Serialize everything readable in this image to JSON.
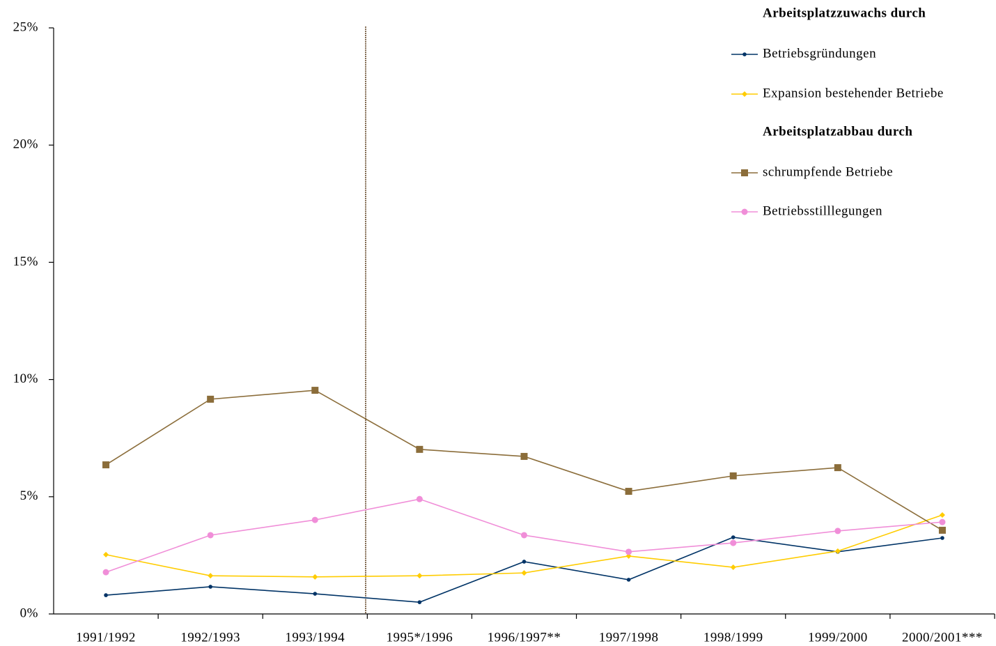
{
  "chart_data": {
    "type": "line",
    "categories": [
      "1991/1992",
      "1992/1993",
      "1993/1994",
      "1995*/1996",
      "1996/1997**",
      "1997/1998",
      "1998/1999",
      "1999/2000",
      "2000/2001***"
    ],
    "legend_headings": [
      "Arbeitsplatzzuwachs durch",
      "Arbeitsplatzabbau durch"
    ],
    "series": [
      {
        "name": "Betriebsgründungen",
        "color": "#003366",
        "marker": "circle-small",
        "values": [
          0.8,
          1.16,
          0.86,
          0.5,
          2.23,
          1.46,
          3.27,
          2.65,
          3.24
        ]
      },
      {
        "name": "Expansion bestehender Betriebe",
        "color": "#ffcc00",
        "marker": "diamond",
        "values": [
          2.53,
          1.63,
          1.58,
          1.63,
          1.75,
          2.47,
          1.99,
          2.68,
          4.22
        ]
      },
      {
        "name": "schrumpfende Betriebe",
        "color": "#8b6d3a",
        "marker": "square",
        "values": [
          6.36,
          9.16,
          9.54,
          7.02,
          6.72,
          5.23,
          5.89,
          6.24,
          3.57
        ]
      },
      {
        "name": "Betriebsstilllegungen",
        "color": "#f08ed8",
        "marker": "circle",
        "values": [
          1.78,
          3.36,
          4.01,
          4.9,
          3.36,
          2.65,
          3.03,
          3.54,
          3.92
        ]
      }
    ],
    "ylim": [
      0,
      25
    ],
    "yticks": [
      {
        "value": 0,
        "label": "0%"
      },
      {
        "value": 5,
        "label": "5%"
      },
      {
        "value": 10,
        "label": "10%"
      },
      {
        "value": 15,
        "label": "15%"
      },
      {
        "value": 20,
        "label": "20%"
      },
      {
        "value": 25,
        "label": "25%"
      }
    ],
    "grid": false
  }
}
